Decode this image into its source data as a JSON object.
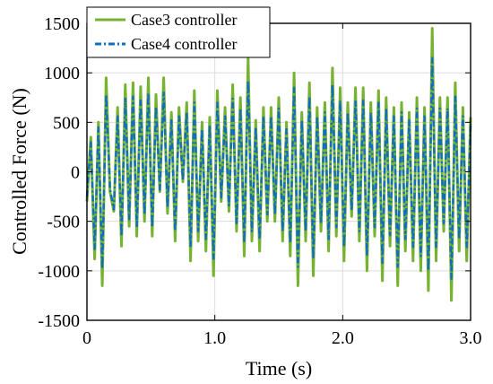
{
  "chart_data": {
    "type": "line",
    "title": "",
    "xlabel": "Time (s)",
    "ylabel": "Controlled Force (N)",
    "xlim": [
      0,
      3.0
    ],
    "ylim": [
      -1500,
      1500
    ],
    "x_ticks": [
      0,
      1.0,
      2.0,
      3.0
    ],
    "x_tick_labels": [
      "0",
      "1.0",
      "2.0",
      "3.0"
    ],
    "y_ticks": [
      -1500,
      -1000,
      -500,
      0,
      500,
      1000,
      1500
    ],
    "y_tick_labels": [
      "-1500",
      "-1000",
      "-500",
      "0",
      "500",
      "1000",
      "1500"
    ],
    "grid": true,
    "legend_position": "top-left",
    "colors": {
      "case3": "#77b230",
      "case4": "#0f6fbf"
    },
    "x": [
      0,
      0.03,
      0.06,
      0.09,
      0.12,
      0.15,
      0.18,
      0.21,
      0.24,
      0.27,
      0.3,
      0.33,
      0.36,
      0.39,
      0.42,
      0.45,
      0.48,
      0.51,
      0.54,
      0.57,
      0.6,
      0.63,
      0.66,
      0.69,
      0.72,
      0.75,
      0.78,
      0.81,
      0.84,
      0.87,
      0.9,
      0.93,
      0.96,
      0.99,
      1.02,
      1.05,
      1.08,
      1.11,
      1.14,
      1.17,
      1.2,
      1.23,
      1.26,
      1.29,
      1.32,
      1.35,
      1.38,
      1.41,
      1.44,
      1.47,
      1.5,
      1.53,
      1.56,
      1.59,
      1.62,
      1.65,
      1.68,
      1.71,
      1.74,
      1.77,
      1.8,
      1.83,
      1.86,
      1.89,
      1.92,
      1.95,
      1.98,
      2.01,
      2.04,
      2.07,
      2.1,
      2.13,
      2.16,
      2.19,
      2.22,
      2.25,
      2.28,
      2.31,
      2.34,
      2.37,
      2.4,
      2.43,
      2.46,
      2.49,
      2.52,
      2.55,
      2.58,
      2.61,
      2.64,
      2.67,
      2.7,
      2.73,
      2.76,
      2.79,
      2.82,
      2.85,
      2.88,
      2.91,
      2.94,
      2.97,
      3.0
    ],
    "series": [
      {
        "name": "Case3 controller",
        "values": [
          -300,
          350,
          -880,
          500,
          -1150,
          950,
          -200,
          -400,
          650,
          -750,
          880,
          -550,
          900,
          -650,
          860,
          -500,
          950,
          -650,
          780,
          -200,
          950,
          -420,
          600,
          -700,
          650,
          -100,
          700,
          -900,
          820,
          -700,
          500,
          -800,
          550,
          -1050,
          820,
          -300,
          650,
          -400,
          880,
          -600,
          750,
          -850,
          1150,
          -700,
          520,
          -800,
          650,
          -500,
          650,
          -500,
          750,
          -700,
          500,
          -850,
          1000,
          -1150,
          600,
          -700,
          900,
          -1050,
          650,
          -600,
          700,
          -800,
          1050,
          -650,
          850,
          -900,
          700,
          -450,
          850,
          -700,
          850,
          -1000,
          700,
          -650,
          820,
          -1100,
          750,
          -750,
          650,
          -1150,
          700,
          -800,
          600,
          -900,
          750,
          -1000,
          650,
          -1200,
          1450,
          -900,
          750,
          -600,
          750,
          -1300,
          900,
          -800,
          650,
          -900,
          550
        ],
        "color": "#77b230"
      },
      {
        "name": "Case4 controller",
        "values": [
          -250,
          300,
          -780,
          450,
          -980,
          780,
          -170,
          -380,
          560,
          -650,
          740,
          -480,
          760,
          -560,
          720,
          -430,
          800,
          -560,
          660,
          -180,
          800,
          -360,
          520,
          -600,
          560,
          -90,
          600,
          -760,
          700,
          -600,
          430,
          -680,
          470,
          -880,
          700,
          -260,
          560,
          -340,
          740,
          -520,
          640,
          -720,
          920,
          -600,
          450,
          -680,
          560,
          -430,
          560,
          -430,
          640,
          -600,
          430,
          -720,
          850,
          -960,
          520,
          -600,
          760,
          -880,
          560,
          -520,
          600,
          -680,
          880,
          -560,
          720,
          -760,
          600,
          -390,
          720,
          -600,
          720,
          -850,
          600,
          -560,
          700,
          -920,
          640,
          -640,
          560,
          -960,
          600,
          -680,
          520,
          -760,
          640,
          -850,
          560,
          -1000,
          1150,
          -760,
          640,
          -520,
          640,
          -1080,
          760,
          -680,
          560,
          -760,
          470
        ],
        "color": "#0f6fbf"
      }
    ]
  }
}
